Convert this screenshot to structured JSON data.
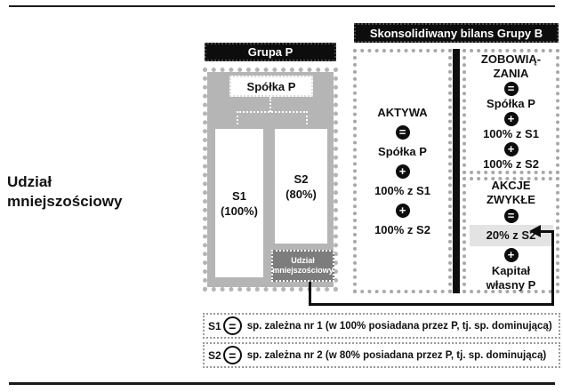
{
  "page": {
    "side_label_line1": "Udział",
    "side_label_line2": "mniejszościowy"
  },
  "grupa": {
    "header": "Grupa P",
    "parent": "Spółka P",
    "s1": "S1\n(100%)",
    "s2": "S2\n(80%)",
    "minority": "Udział\nmniejszościowy"
  },
  "bilans": {
    "header": "Skonsolidiwany bilans Grupy B",
    "aktywa": {
      "items": [
        {
          "t": "title",
          "v": "AKTYWA"
        },
        {
          "t": "eq"
        },
        {
          "t": "text",
          "v": "Spółka P"
        },
        {
          "t": "plus"
        },
        {
          "t": "text",
          "v": "100% z S1"
        },
        {
          "t": "plus"
        },
        {
          "t": "text",
          "v": "100% z S2"
        }
      ]
    },
    "zobowiazania": {
      "items": [
        {
          "t": "title",
          "v": "ZOBOWIĄ-\nZANIA"
        },
        {
          "t": "eq"
        },
        {
          "t": "text",
          "v": "Spółka P"
        },
        {
          "t": "plus"
        },
        {
          "t": "text",
          "v": "100% z S1"
        },
        {
          "t": "plus"
        },
        {
          "t": "text",
          "v": "100% z S2"
        }
      ]
    },
    "akcje": {
      "items": [
        {
          "t": "title",
          "v": "AKCJE\nZWYKŁE"
        },
        {
          "t": "eq"
        },
        {
          "t": "text",
          "v": "20% z S2",
          "highlight": true
        },
        {
          "t": "plus"
        },
        {
          "t": "text",
          "v": "Kapitał\nwłasny P"
        }
      ]
    }
  },
  "legend": {
    "rows": [
      {
        "key": "S1",
        "symbol": "=",
        "text": "sp. zależna nr 1 (w 100% posiadana przez P, tj. sp. dominującą)"
      },
      {
        "key": "S2",
        "symbol": "=",
        "text": "sp. zależna nr 2 (w 80% posiadana przez P, tj. sp. dominującą)"
      }
    ]
  },
  "colors": {
    "group_gray": "#b5b5b5",
    "minority_gray": "#7d7d7d",
    "highlight_gray": "#e3e3e3",
    "black": "#0d0d0d"
  }
}
